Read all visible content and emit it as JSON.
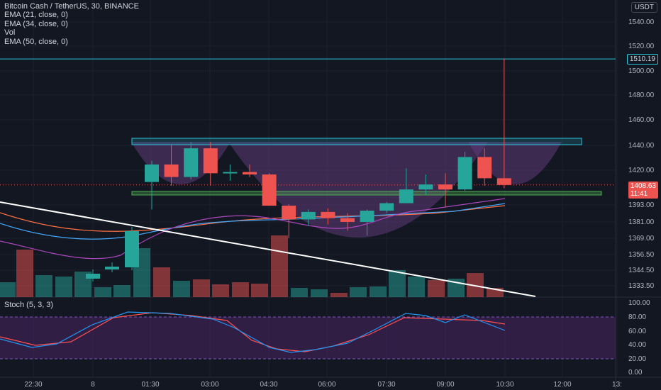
{
  "header": {
    "symbol_line": "Bitcoin Cash / TetherUS, 30, BINANCE",
    "indicators": [
      "EMA (21, close, 0)",
      "EMA (34, close, 0)",
      "Vol",
      "EMA (50, close, 0)"
    ],
    "currency_button": "USDT"
  },
  "price_axis": {
    "ticks": [
      "1540.00",
      "1520.00",
      "1500.00",
      "1480.00",
      "1460.00",
      "1440.00",
      "1420.00",
      "1393.00",
      "1381.00",
      "1369.00",
      "1356.50",
      "1344.50",
      "1333.50"
    ],
    "resistance_label": "1510.19",
    "last_price": "1408.63",
    "countdown": "11:41"
  },
  "stoch": {
    "label": "Stoch (5, 3, 3)",
    "ticks": [
      "100.00",
      "80.00",
      "60.00",
      "40.00",
      "20.00",
      "0.00"
    ]
  },
  "time_axis": {
    "ticks": [
      "22:30",
      "8",
      "01:30",
      "03:00",
      "04:30",
      "06:00",
      "07:30",
      "09:00",
      "10:30",
      "12:00",
      "13:"
    ]
  },
  "colors": {
    "background": "#131722",
    "up": "#26a69a",
    "down": "#ef5350",
    "cup_fill": "#5e3a78",
    "resistance_line": "#26c6da",
    "trendline": "#ffffff",
    "stoch_band": "#4a2563"
  },
  "chart_data": {
    "type": "candlestick",
    "candles": [
      {
        "o": 1411,
        "h": 1428,
        "l": 1389,
        "c": 1425
      },
      {
        "o": 1425,
        "h": 1441,
        "l": 1408,
        "c": 1415
      },
      {
        "o": 1415,
        "h": 1443,
        "l": 1413,
        "c": 1438
      },
      {
        "o": 1438,
        "h": 1443,
        "l": 1408,
        "c": 1418
      },
      {
        "o": 1418,
        "h": 1425,
        "l": 1412,
        "c": 1419
      },
      {
        "o": 1419,
        "h": 1425,
        "l": 1415,
        "c": 1417
      },
      {
        "o": 1417,
        "h": 1418,
        "l": 1392,
        "c": 1392
      },
      {
        "o": 1392,
        "h": 1393,
        "l": 1366,
        "c": 1381
      },
      {
        "o": 1381,
        "h": 1389,
        "l": 1376,
        "c": 1387
      },
      {
        "o": 1387,
        "h": 1390,
        "l": 1377,
        "c": 1382
      },
      {
        "o": 1382,
        "h": 1386,
        "l": 1372,
        "c": 1379
      },
      {
        "o": 1379,
        "h": 1389,
        "l": 1368,
        "c": 1388
      },
      {
        "o": 1388,
        "h": 1395,
        "l": 1386,
        "c": 1394
      },
      {
        "o": 1394,
        "h": 1422,
        "l": 1394,
        "c": 1405
      },
      {
        "o": 1405,
        "h": 1417,
        "l": 1401,
        "c": 1409
      },
      {
        "o": 1409,
        "h": 1418,
        "l": 1391,
        "c": 1405
      },
      {
        "o": 1405,
        "h": 1435,
        "l": 1404,
        "c": 1431
      },
      {
        "o": 1431,
        "h": 1438,
        "l": 1408,
        "c": 1414
      },
      {
        "o": 1414,
        "h": 1510,
        "l": 1406,
        "c": 1408.63
      }
    ]
  }
}
